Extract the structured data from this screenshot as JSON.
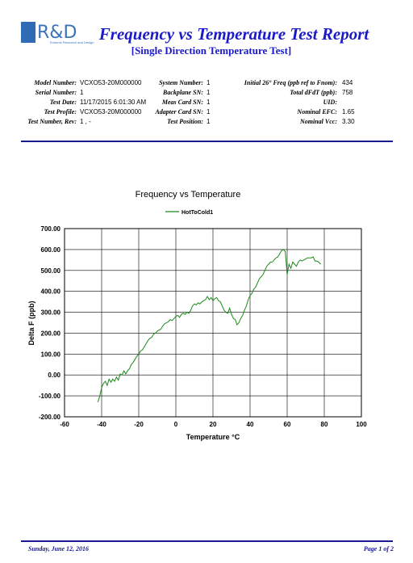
{
  "header": {
    "logo": {
      "mark": "R&D",
      "tagline": "Extreme Research and Design"
    },
    "title": "Frequency vs Temperature Test Report",
    "subtitle": "[Single Direction Temperature Test]"
  },
  "info": [
    [
      {
        "label": "Model Number:",
        "value": "VCXO53-20M000000"
      },
      {
        "label": "Serial Number:",
        "value": "1"
      },
      {
        "label": "Test Date:",
        "value": "11/17/2015 6:01:30 AM"
      },
      {
        "label": "Test Profile:",
        "value": "VCXO53-20M000000"
      },
      {
        "label": "Test Number, Rev:",
        "value": "1 ,  -"
      }
    ],
    [
      {
        "label": "System Number:",
        "value": "1"
      },
      {
        "label": "Backplane SN:",
        "value": "1"
      },
      {
        "label": "Meas Card SN:",
        "value": "1"
      },
      {
        "label": "Adapter Card SN:",
        "value": "1"
      },
      {
        "label": "Test Position:",
        "value": "1"
      }
    ],
    [
      {
        "label": "Initial 26° Freq (ppb ref to Fnom):",
        "value": "434"
      },
      {
        "label": "Total dFdT (ppb):",
        "value": "758"
      },
      {
        "label": "UID:"
      },
      {
        "label": "Nominal EFC:",
        "value": "1.65"
      },
      {
        "label": "Nominal Vcc:",
        "value": "3.30"
      }
    ]
  ],
  "chart_data": {
    "type": "line",
    "title": "Frequency vs Temperature",
    "x_label": "Temperature °C",
    "y_label": "Delta F (ppb)",
    "grid": true,
    "legend": "top",
    "x": [
      -42,
      -41,
      -40,
      -39,
      -38,
      -37,
      -36,
      -35,
      -34,
      -33,
      -32,
      -31,
      -30,
      -29,
      -28,
      -27,
      -26,
      -25,
      -24,
      -23,
      -22,
      -21,
      -20,
      -19,
      -18,
      -17,
      -16,
      -15,
      -14,
      -13,
      -12,
      -11,
      -10,
      -9,
      -8,
      -7,
      -6,
      -5,
      -4,
      -3,
      -2,
      -1,
      0,
      1,
      2,
      3,
      4,
      5,
      6,
      7,
      8,
      9,
      10,
      11,
      12,
      13,
      14,
      15,
      16,
      17,
      18,
      19,
      20,
      21,
      22,
      23,
      24,
      25,
      26,
      27,
      28,
      29,
      30,
      31,
      32,
      33,
      34,
      35,
      36,
      37,
      38,
      39,
      40,
      41,
      42,
      43,
      44,
      45,
      46,
      47,
      48,
      49,
      50,
      51,
      52,
      53,
      54,
      55,
      56,
      57,
      58,
      59,
      60,
      61,
      62,
      63,
      64,
      65,
      66,
      67,
      68,
      69,
      70,
      71,
      72,
      73,
      74,
      75,
      76,
      77,
      78
    ],
    "series": [
      {
        "name": "HotToCold1",
        "color": "#1a8a1a",
        "values": [
          -130,
          -100,
          -60,
          -40,
          -30,
          -50,
          -20,
          -35,
          -20,
          -30,
          -10,
          -25,
          5,
          0,
          20,
          5,
          20,
          30,
          50,
          60,
          75,
          90,
          100,
          115,
          120,
          135,
          150,
          165,
          175,
          180,
          195,
          200,
          210,
          215,
          220,
          235,
          245,
          250,
          255,
          265,
          260,
          270,
          280,
          285,
          275,
          290,
          295,
          290,
          300,
          295,
          310,
          330,
          340,
          335,
          345,
          340,
          350,
          355,
          360,
          375,
          360,
          370,
          355,
          365,
          370,
          355,
          350,
          330,
          310,
          300,
          295,
          320,
          290,
          270,
          265,
          240,
          250,
          270,
          285,
          310,
          330,
          360,
          380,
          390,
          410,
          420,
          440,
          460,
          470,
          480,
          500,
          520,
          530,
          540,
          540,
          550,
          560,
          565,
          580,
          595,
          600,
          590,
          480,
          530,
          510,
          540,
          530,
          520,
          540,
          550,
          545,
          550,
          555,
          560,
          560,
          560,
          565,
          545,
          545,
          540,
          530
        ]
      }
    ],
    "xlim": [
      -60,
      100
    ],
    "xticks": [
      -60,
      -40,
      -20,
      0,
      20,
      40,
      60,
      80,
      100
    ],
    "ylim": [
      -200,
      700
    ],
    "yticks": [
      {
        "value": -200,
        "label": "-200.00"
      },
      {
        "value": -100,
        "label": "-100.00"
      },
      {
        "value": 0,
        "label": "0.00"
      },
      {
        "value": 100,
        "label": "100.00"
      },
      {
        "value": 200,
        "label": "200.00"
      },
      {
        "value": 300,
        "label": "300.00"
      },
      {
        "value": 400,
        "label": "400.00"
      },
      {
        "value": 500,
        "label": "500.00"
      },
      {
        "value": 600,
        "label": "600.00"
      },
      {
        "value": 700,
        "label": "700.00"
      }
    ]
  },
  "footer": {
    "date": "Sunday, June 12, 2016",
    "page": "Page 1 of 2"
  }
}
